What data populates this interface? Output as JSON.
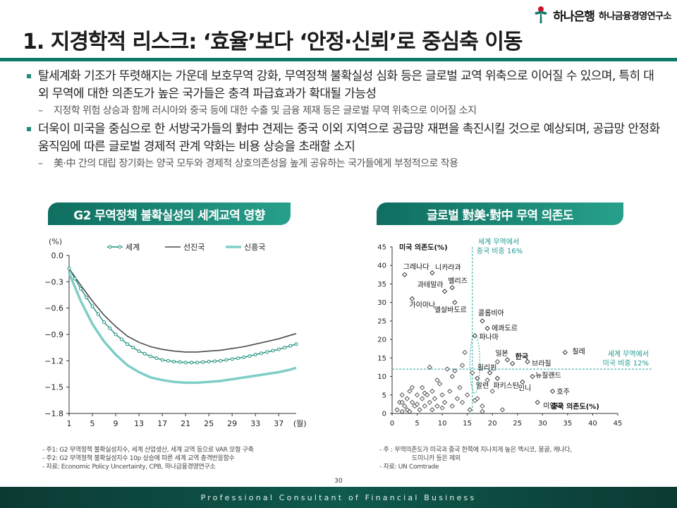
{
  "header": {
    "brand": "하나은행",
    "institute": "하나금융경영연구소",
    "title": "1. 지경학적 리스크: ‘효율’보다 ‘안정·신뢰’로 중심축 이동",
    "colors": {
      "accent": "#0f7a6a",
      "logo_red": "#d0112b",
      "logo_green": "#0f7a6a"
    }
  },
  "bullets": [
    {
      "text": "탈세계화 기조가 뚜렷해지는 가운데 보호무역 강화, 무역정책 불확실성 심화 등은 글로벌 교역 위축으로 이어질 수 있으며, 특히 대외 무역에 대한 의존도가 높은 국가들은 충격 파급효과가 확대될 가능성",
      "sub": "지정학 위험 상승과 함께 러시아와 중국 등에 대한 수출 및 금융 제재 등은 글로벌 무역 위축으로 이어질 소지"
    },
    {
      "text": "더욱이 미국을 중심으로 한 서방국가들의 對中 견제는 중국 이외 지역으로 공급망 재편을 촉진시킬 것으로 예상되며, 공급망 안정화 움직임에 따른 글로벌 경제적 관계 약화는 비용 상승을 초래할 소지",
      "sub": "美·中 간의 대립 장기화는 양국 모두와 경제적 상호의존성을 높게 공유하는 국가들에게 부정적으로 작용"
    }
  ],
  "chart_data": [
    {
      "type": "line",
      "title": "G2 무역정책 불확실성의 세계교역 영향",
      "ylabel": "(%)",
      "xunit": "(월)",
      "ylim": [
        -1.8,
        0.0
      ],
      "yticks": [
        0.0,
        -0.3,
        -0.6,
        -0.9,
        -1.2,
        -1.5,
        -1.8
      ],
      "ytick_labels": [
        "0.0",
        "−0.3",
        "−0.6",
        "−0.9",
        "−1.2",
        "−1.5",
        "−1.8"
      ],
      "xlim": [
        1,
        40
      ],
      "xticks": [
        1,
        5,
        9,
        13,
        17,
        21,
        25,
        29,
        33,
        37
      ],
      "legend": [
        "세계",
        "선진국",
        "신흥국"
      ],
      "series": [
        {
          "name": "세계",
          "color": "#1f8f7e",
          "x": [
            1,
            3,
            5,
            7,
            9,
            11,
            13,
            15,
            17,
            19,
            21,
            23,
            25,
            27,
            29,
            31,
            33,
            35,
            37,
            39,
            40
          ],
          "values": [
            -0.15,
            -0.38,
            -0.58,
            -0.76,
            -0.9,
            -1.01,
            -1.09,
            -1.15,
            -1.19,
            -1.21,
            -1.22,
            -1.22,
            -1.21,
            -1.2,
            -1.18,
            -1.16,
            -1.13,
            -1.1,
            -1.07,
            -1.03,
            -1.01
          ]
        },
        {
          "name": "선진국",
          "color": "#4a4a4a",
          "x": [
            1,
            3,
            5,
            7,
            9,
            11,
            13,
            15,
            17,
            19,
            21,
            23,
            25,
            27,
            29,
            31,
            33,
            35,
            37,
            39,
            40
          ],
          "values": [
            -0.15,
            -0.34,
            -0.52,
            -0.68,
            -0.81,
            -0.92,
            -0.99,
            -1.04,
            -1.07,
            -1.09,
            -1.1,
            -1.1,
            -1.09,
            -1.08,
            -1.06,
            -1.04,
            -1.01,
            -0.98,
            -0.95,
            -0.91,
            -0.89
          ]
        },
        {
          "name": "신흥국",
          "color": "#7fcdc8",
          "x": [
            1,
            3,
            5,
            7,
            9,
            11,
            13,
            15,
            17,
            19,
            21,
            23,
            25,
            27,
            29,
            31,
            33,
            35,
            37,
            39,
            40
          ],
          "values": [
            -0.2,
            -0.52,
            -0.78,
            -0.98,
            -1.13,
            -1.25,
            -1.33,
            -1.39,
            -1.42,
            -1.44,
            -1.45,
            -1.45,
            -1.44,
            -1.43,
            -1.41,
            -1.39,
            -1.37,
            -1.35,
            -1.33,
            -1.3,
            -1.28
          ]
        }
      ]
    },
    {
      "type": "scatter",
      "title": "글로벌 對美·對中 무역 의존도",
      "ylabel": "미국 의존도(%)",
      "xlabel": "중국 의존도(%)",
      "xlim": [
        0,
        45
      ],
      "ylim": [
        0,
        45
      ],
      "xticks": [
        0,
        5,
        10,
        15,
        20,
        25,
        30,
        35,
        40,
        45
      ],
      "yticks": [
        0,
        5,
        10,
        15,
        20,
        25,
        30,
        35,
        40,
        45
      ],
      "ref_x": {
        "value": 16,
        "label": [
          "세계 무역에서",
          "중국 비중 16%"
        ]
      },
      "ref_y": {
        "value": 12,
        "label": [
          "세계 무역에서",
          "미국 비중 12%"
        ]
      },
      "labeled_points": [
        {
          "name": "그레나다",
          "x": 2.5,
          "y": 37.5
        },
        {
          "name": "니카라과",
          "x": 8,
          "y": 38
        },
        {
          "name": "벨리즈",
          "x": 12,
          "y": 34
        },
        {
          "name": "과테말라",
          "x": 10.5,
          "y": 33
        },
        {
          "name": "가이아나",
          "x": 4,
          "y": 31
        },
        {
          "name": "엘살바도르",
          "x": 12.5,
          "y": 30
        },
        {
          "name": "콜롬비아",
          "x": 18,
          "y": 25
        },
        {
          "name": "에콰도르",
          "x": 19,
          "y": 23
        },
        {
          "name": "파나마",
          "x": 16.5,
          "y": 21
        },
        {
          "name": "일본",
          "x": 23,
          "y": 14.5
        },
        {
          "name": "한국",
          "x": 24,
          "y": 13.5
        },
        {
          "name": "브라질",
          "x": 27,
          "y": 14
        },
        {
          "name": "칠레",
          "x": 34.5,
          "y": 16.5
        },
        {
          "name": "필리핀",
          "x": 19.5,
          "y": 11
        },
        {
          "name": "말련",
          "x": 17,
          "y": 9.5
        },
        {
          "name": "파키스탄",
          "x": 21,
          "y": 9.5
        },
        {
          "name": "인니",
          "x": 26,
          "y": 8.5
        },
        {
          "name": "뉴질랜드",
          "x": 28,
          "y": 10
        },
        {
          "name": "호주",
          "x": 32,
          "y": 6
        },
        {
          "name": "미얀마",
          "x": 29,
          "y": 3
        }
      ],
      "points": [
        [
          1,
          1
        ],
        [
          1.5,
          3
        ],
        [
          2,
          5
        ],
        [
          2.5,
          2
        ],
        [
          3,
          4
        ],
        [
          3,
          1
        ],
        [
          3.5,
          6
        ],
        [
          4,
          3
        ],
        [
          4.5,
          2
        ],
        [
          5,
          5
        ],
        [
          5.5,
          1
        ],
        [
          6,
          4
        ],
        [
          6,
          7
        ],
        [
          6.5,
          2
        ],
        [
          7,
          5
        ],
        [
          7.5,
          3
        ],
        [
          8,
          1
        ],
        [
          8,
          6
        ],
        [
          8.5,
          4
        ],
        [
          9,
          2
        ],
        [
          9.5,
          8
        ],
        [
          10,
          5
        ],
        [
          10.5,
          3
        ],
        [
          11,
          12
        ],
        [
          11.5,
          6
        ],
        [
          12,
          2
        ],
        [
          12,
          10
        ],
        [
          13,
          4
        ],
        [
          13.5,
          7
        ],
        [
          14,
          3
        ],
        [
          14,
          13
        ],
        [
          15,
          5
        ],
        [
          15.5,
          1
        ],
        [
          16,
          11
        ],
        [
          17,
          4
        ],
        [
          18,
          2
        ],
        [
          19,
          9
        ],
        [
          20,
          6
        ],
        [
          22,
          1
        ],
        [
          2,
          3
        ],
        [
          3.5,
          0.5
        ],
        [
          4,
          7
        ],
        [
          5,
          2.5
        ],
        [
          6.5,
          5.5
        ],
        [
          7.5,
          12.5
        ],
        [
          9,
          9
        ],
        [
          10,
          1.5
        ],
        [
          12.5,
          11.5
        ],
        [
          14.5,
          16.5
        ],
        [
          16.5,
          3.5
        ],
        [
          18,
          0.5
        ],
        [
          21,
          14
        ],
        [
          2,
          0.5
        ]
      ]
    }
  ],
  "notes_left": [
    "- 주1: G2 무역정책 불확실성지수, 세계 산업생산, 세계 교역 등으로 VAR 모형 구축",
    "- 주2: G2 무역정책 불확실성지수 10p 상승에 따른 세계 교역 충격반응함수",
    "- 자료: Economic Policy Uncertainty, CPB, 하나금융경영연구소"
  ],
  "notes_right": [
    "- 주 : 무역의존도가 미국과 중국 한쪽에 지나치게 높은 멕시코, 몽골, 캐나다,",
    "도미니카 등은 제외",
    "- 자료: UN Comtrade"
  ],
  "page_number": "30",
  "footer": "Professional Consultant of Financial Business"
}
